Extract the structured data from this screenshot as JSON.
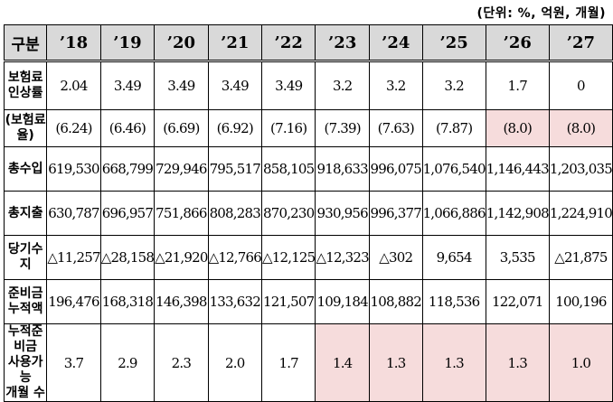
{
  "unit_note": "(단위: %, 억원, 개월)",
  "header": [
    "구분",
    "’18",
    "’19",
    "’20",
    "’21",
    "’22",
    "’23",
    "’24",
    "’25",
    "’26",
    "’27"
  ],
  "rows": [
    {
      "label": "보험료\n인상률",
      "values": [
        "2.04",
        "3.49",
        "3.49",
        "3.49",
        "3.49",
        "3.2",
        "3.2",
        "3.2",
        "1.7",
        "0"
      ]
    },
    {
      "label": "(보험료율)",
      "values": [
        "(6.24)",
        "(6.46)",
        "(6.69)",
        "(6.92)",
        "(7.16)",
        "(7.39)",
        "(7.63)",
        "(7.87)",
        "(8.0)",
        "(8.0)"
      ]
    },
    {
      "label": "총수입",
      "values": [
        "619,530",
        "668,799",
        "729,946",
        "795,517",
        "858,105",
        "918,633",
        "996,075",
        "1,076,540",
        "1,146,443",
        "1,203,035"
      ]
    },
    {
      "label": "총지출",
      "values": [
        "630,787",
        "696,957",
        "751,866",
        "808,283",
        "870,230",
        "930,956",
        "996,377",
        "1,066,886",
        "1,142,908",
        "1,224,910"
      ]
    },
    {
      "label": "당기수지",
      "values": [
        "△11,257",
        "△28,158",
        "△21,920",
        "△12,766",
        "△12,125",
        "△12,323",
        "△302",
        "9,654",
        "3,535",
        "△21,875"
      ]
    },
    {
      "label": "준비금\n누적액",
      "values": [
        "196,476",
        "168,318",
        "146,398",
        "133,632",
        "121,507",
        "109,184",
        "108,882",
        "118,536",
        "122,071",
        "100,196"
      ]
    },
    {
      "label": "누적준비금\n사용가능\n개월 수",
      "values": [
        "3.7",
        "2.9",
        "2.3",
        "2.0",
        "1.7",
        "1.4",
        "1.3",
        "1.3",
        "1.3",
        "1.0"
      ]
    }
  ],
  "highlight_color": "#f6dcdc"
}
